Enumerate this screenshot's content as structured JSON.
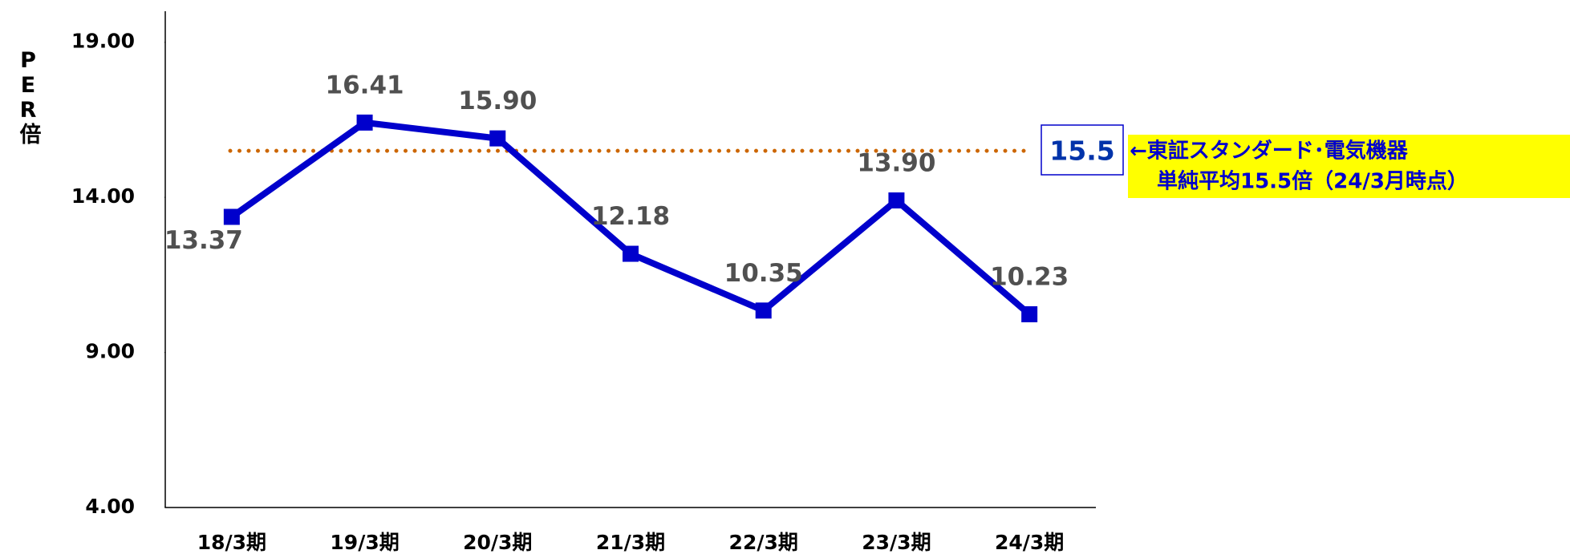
{
  "chart_data": {
    "type": "line",
    "y_label": "PER倍",
    "categories": [
      "18/3期",
      "19/3期",
      "20/3期",
      "21/3期",
      "22/3期",
      "23/3期",
      "24/3期"
    ],
    "series": [
      {
        "name": "PER",
        "color": "#0000cc",
        "values": [
          13.37,
          16.41,
          15.9,
          12.18,
          10.35,
          13.9,
          10.23
        ],
        "value_labels": [
          "13.37",
          "16.41",
          "15.90",
          "12.18",
          "10.35",
          "13.90",
          "10.23"
        ]
      }
    ],
    "ylim": [
      4,
      20
    ],
    "yticks": [
      {
        "value": 4,
        "label": "4.00"
      },
      {
        "value": 9,
        "label": "9.00"
      },
      {
        "value": 14,
        "label": "14.00"
      },
      {
        "value": 19,
        "label": "19.00"
      }
    ],
    "reference_line": {
      "value": 15.5,
      "color": "#cc6600"
    },
    "annotation": [
      "←東証スタンダード･電気機器",
      "単純平均15.5倍（24/3月時点）"
    ],
    "grid": false
  }
}
